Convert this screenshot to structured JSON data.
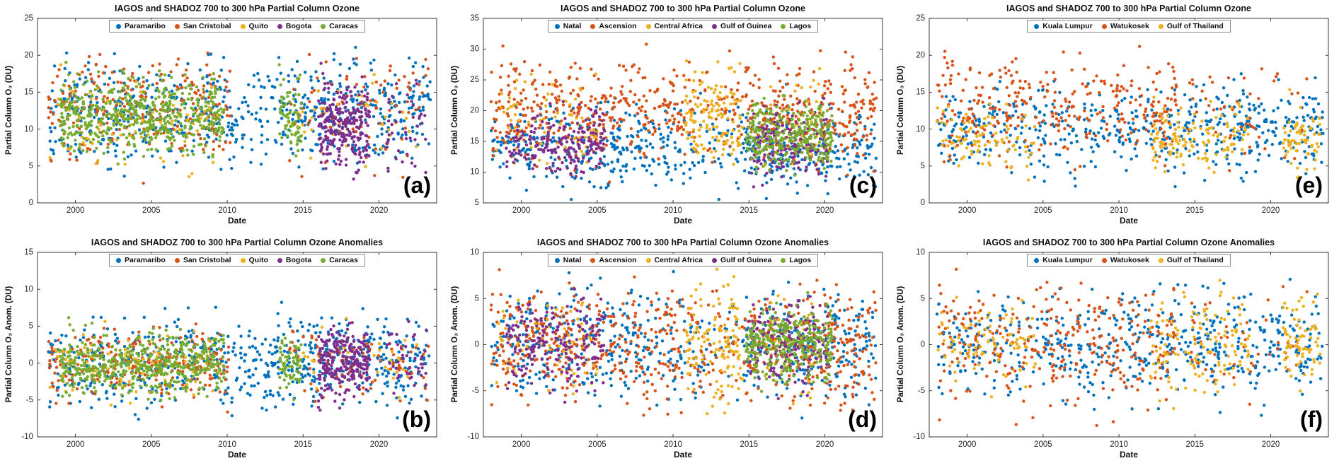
{
  "figure": {
    "background": "#ffffff",
    "rows": 2,
    "cols": 3
  },
  "chart_data": [
    {
      "id": "a",
      "panel_label": "(a)",
      "type": "scatter",
      "title": "IAGOS and SHADOZ 700 to 300 hPa Partial Column Ozone",
      "xlabel": "Date",
      "ylabel": "Partial Column O₃ (DU)",
      "xlim": [
        1997.5,
        2023.8
      ],
      "ylim": [
        0,
        25
      ],
      "xticks": [
        2000,
        2005,
        2010,
        2015,
        2020
      ],
      "yticks": [
        0,
        5,
        10,
        15,
        20,
        25
      ],
      "legend_position": "top-center-inside",
      "grid": false,
      "series": [
        {
          "name": "Paramaribo",
          "color": "#0072BD",
          "center": 12.2,
          "spread": 3.3,
          "segments": [
            [
              1998.2,
              2023.4,
              640
            ]
          ]
        },
        {
          "name": "San Cristobal",
          "color": "#D95319",
          "center": 12.6,
          "spread": 3.5,
          "segments": [
            [
              1998.2,
              2010.2,
              240
            ],
            [
              2014.0,
              2023.3,
              85
            ]
          ]
        },
        {
          "name": "Quito",
          "color": "#EDB120",
          "center": 11.2,
          "spread": 3.0,
          "segments": [
            [
              1998.3,
              2009.5,
              90
            ],
            [
              2014.0,
              2022.5,
              45
            ]
          ]
        },
        {
          "name": "Bogota",
          "color": "#7E2F8E",
          "center": 10.6,
          "spread": 2.9,
          "segments": [
            [
              2016.0,
              2019.4,
              260
            ],
            [
              2020.5,
              2023.2,
              40
            ]
          ]
        },
        {
          "name": "Caracas",
          "color": "#77AC30",
          "center": 12.0,
          "spread": 2.6,
          "segments": [
            [
              1999.0,
              2009.8,
              520
            ],
            [
              2013.4,
              2014.9,
              70
            ]
          ]
        }
      ]
    },
    {
      "id": "c",
      "panel_label": "(c)",
      "type": "scatter",
      "title": "IAGOS and SHADOZ 700 to 300 hPa Partial Column Ozone",
      "xlabel": "Date",
      "ylabel": "Partial Column O₃ (DU)",
      "xlim": [
        1997.5,
        2023.8
      ],
      "ylim": [
        5,
        35
      ],
      "xticks": [
        2000,
        2005,
        2010,
        2015,
        2020
      ],
      "yticks": [
        5,
        10,
        15,
        20,
        25,
        30,
        35
      ],
      "legend_position": "top-center-inside",
      "grid": false,
      "series": [
        {
          "name": "Natal",
          "color": "#0072BD",
          "center": 13.8,
          "spread": 3.2,
          "segments": [
            [
              1998.0,
              2010.8,
              300
            ],
            [
              2011.0,
              2014.4,
              45
            ],
            [
              2014.5,
              2023.4,
              230
            ]
          ]
        },
        {
          "name": "Ascension",
          "color": "#D95319",
          "center": 19.5,
          "spread": 4.0,
          "segments": [
            [
              1998.0,
              2010.8,
              330
            ],
            [
              2011.0,
              2014.4,
              55
            ],
            [
              2014.5,
              2023.4,
              260
            ]
          ]
        },
        {
          "name": "Central Africa",
          "color": "#EDB120",
          "center": 18.5,
          "spread": 3.8,
          "segments": [
            [
              1998.3,
              2005.0,
              75
            ],
            [
              2010.8,
              2014.6,
              130
            ],
            [
              2016.0,
              2020.0,
              40
            ]
          ]
        },
        {
          "name": "Gulf of Guinea",
          "color": "#7E2F8E",
          "center": 15.0,
          "spread": 2.6,
          "segments": [
            [
              1999.0,
              2005.5,
              200
            ],
            [
              2015.0,
              2020.2,
              170
            ]
          ]
        },
        {
          "name": "Lagos",
          "color": "#77AC30",
          "center": 16.0,
          "spread": 2.6,
          "segments": [
            [
              2014.8,
              2020.5,
              300
            ]
          ]
        }
      ]
    },
    {
      "id": "e",
      "panel_label": "(e)",
      "type": "scatter",
      "title": "IAGOS and SHADOZ 700 to 300 hPa Partial Column Ozone",
      "xlabel": "Date",
      "ylabel": "Partial Column O₃ (DU)",
      "xlim": [
        1997.5,
        2023.8
      ],
      "ylim": [
        0,
        25
      ],
      "xticks": [
        2000,
        2005,
        2010,
        2015,
        2020
      ],
      "yticks": [
        0,
        5,
        10,
        15,
        20,
        25
      ],
      "legend_position": "top-center-inside",
      "grid": false,
      "series": [
        {
          "name": "Kuala Lumpur",
          "color": "#0072BD",
          "center": 10.0,
          "spread": 2.7,
          "segments": [
            [
              1998.0,
              2023.5,
              520
            ]
          ]
        },
        {
          "name": "Watukosek",
          "color": "#D95319",
          "center": 12.5,
          "spread": 3.5,
          "segments": [
            [
              1998.0,
              2013.8,
              300
            ],
            [
              2014.5,
              2022.5,
              45
            ]
          ]
        },
        {
          "name": "Gulf of Thailand",
          "color": "#EDB120",
          "center": 8.6,
          "spread": 2.2,
          "segments": [
            [
              1998.0,
              2004.5,
              90
            ],
            [
              2012.0,
              2018.6,
              130
            ],
            [
              2020.8,
              2023.3,
              70
            ]
          ]
        }
      ]
    },
    {
      "id": "b",
      "panel_label": "(b)",
      "type": "scatter",
      "title": "IAGOS and SHADOZ 700 to 300 hPa Partial Column Ozone Anomalies",
      "xlabel": "Date",
      "ylabel": "Partial Column O₃ Anom. (DU)",
      "xlim": [
        1997.5,
        2023.8
      ],
      "ylim": [
        -10,
        15
      ],
      "xticks": [
        2000,
        2005,
        2010,
        2015,
        2020
      ],
      "yticks": [
        -10,
        -5,
        0,
        5,
        10,
        15
      ],
      "legend_position": "top-center-inside",
      "grid": false,
      "series": [
        {
          "name": "Paramaribo",
          "color": "#0072BD",
          "center": 0,
          "spread": 3.0,
          "segments": [
            [
              1998.2,
              2023.4,
              640
            ]
          ]
        },
        {
          "name": "San Cristobal",
          "color": "#D95319",
          "center": 0,
          "spread": 2.2,
          "segments": [
            [
              1998.2,
              2010.2,
              240
            ],
            [
              2014.0,
              2023.3,
              85
            ]
          ]
        },
        {
          "name": "Quito",
          "color": "#EDB120",
          "center": 0,
          "spread": 2.2,
          "segments": [
            [
              1998.3,
              2009.5,
              90
            ],
            [
              2014.0,
              2022.5,
              45
            ]
          ]
        },
        {
          "name": "Bogota",
          "color": "#7E2F8E",
          "center": 0,
          "spread": 2.2,
          "segments": [
            [
              2016.0,
              2019.4,
              260
            ],
            [
              2020.5,
              2023.2,
              40
            ]
          ]
        },
        {
          "name": "Caracas",
          "color": "#77AC30",
          "center": 0,
          "spread": 1.9,
          "segments": [
            [
              1999.0,
              2009.8,
              520
            ],
            [
              2013.4,
              2014.9,
              70
            ]
          ]
        }
      ]
    },
    {
      "id": "d",
      "panel_label": "(d)",
      "type": "scatter",
      "title": "IAGOS and SHADOZ 700 to 300 hPa Partial Column Ozone Anomalies",
      "xlabel": "Date",
      "ylabel": "Partial Column O₃ Anom. (DU)",
      "xlim": [
        1997.5,
        2023.8
      ],
      "ylim": [
        -10,
        10
      ],
      "xticks": [
        2000,
        2005,
        2010,
        2015,
        2020
      ],
      "yticks": [
        -10,
        -5,
        0,
        5,
        10
      ],
      "legend_position": "top-center-inside",
      "grid": false,
      "series": [
        {
          "name": "Natal",
          "color": "#0072BD",
          "center": 0,
          "spread": 2.9,
          "segments": [
            [
              1998.0,
              2010.8,
              300
            ],
            [
              2011.0,
              2014.4,
              45
            ],
            [
              2014.5,
              2023.4,
              230
            ]
          ]
        },
        {
          "name": "Ascension",
          "color": "#D95319",
          "center": 0,
          "spread": 3.1,
          "segments": [
            [
              1998.0,
              2010.8,
              330
            ],
            [
              2011.0,
              2014.4,
              55
            ],
            [
              2014.5,
              2023.4,
              260
            ]
          ]
        },
        {
          "name": "Central Africa",
          "color": "#EDB120",
          "center": 0,
          "spread": 3.0,
          "segments": [
            [
              1998.3,
              2005.0,
              75
            ],
            [
              2010.8,
              2014.6,
              130
            ],
            [
              2016.0,
              2020.0,
              40
            ]
          ]
        },
        {
          "name": "Gulf of Guinea",
          "color": "#7E2F8E",
          "center": 0,
          "spread": 2.2,
          "segments": [
            [
              1999.0,
              2005.5,
              200
            ],
            [
              2015.0,
              2020.2,
              170
            ]
          ]
        },
        {
          "name": "Lagos",
          "color": "#77AC30",
          "center": 0,
          "spread": 2.0,
          "segments": [
            [
              2014.8,
              2020.5,
              300
            ]
          ]
        }
      ]
    },
    {
      "id": "f",
      "panel_label": "(f)",
      "type": "scatter",
      "title": "IAGOS and SHADOZ 700 to 300 hPa Partial Column Ozone Anomalies",
      "xlabel": "Date",
      "ylabel": "Partial Column O₃ Anom. (DU)",
      "xlim": [
        1997.5,
        2023.8
      ],
      "ylim": [
        -10,
        10
      ],
      "xticks": [
        2000,
        2005,
        2010,
        2015,
        2020
      ],
      "yticks": [
        -10,
        -5,
        0,
        5,
        10
      ],
      "legend_position": "top-center-inside",
      "grid": false,
      "series": [
        {
          "name": "Kuala Lumpur",
          "color": "#0072BD",
          "center": 0,
          "spread": 2.6,
          "segments": [
            [
              1998.0,
              2023.5,
              520
            ]
          ]
        },
        {
          "name": "Watukosek",
          "color": "#D95319",
          "center": 0,
          "spread": 3.1,
          "segments": [
            [
              1998.0,
              2013.8,
              300
            ],
            [
              2014.5,
              2022.5,
              45
            ]
          ]
        },
        {
          "name": "Gulf of Thailand",
          "color": "#EDB120",
          "center": 0,
          "spread": 2.4,
          "segments": [
            [
              1998.0,
              2004.5,
              90
            ],
            [
              2012.0,
              2018.6,
              130
            ],
            [
              2020.8,
              2023.3,
              70
            ]
          ]
        }
      ]
    }
  ]
}
